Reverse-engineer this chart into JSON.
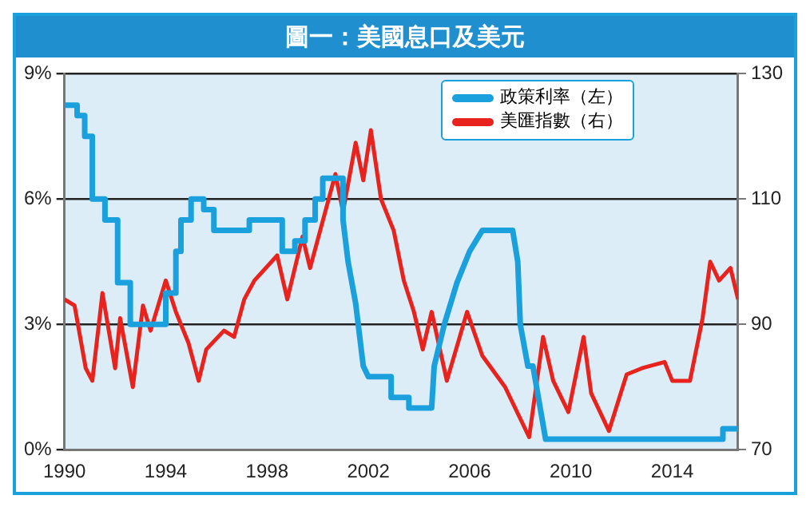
{
  "chart_data": {
    "type": "line",
    "title": "圖一：美國息口及美元",
    "xlim": [
      1990,
      2016.6
    ],
    "xticks": [
      1990,
      1994,
      1998,
      2002,
      2006,
      2010,
      2014
    ],
    "ylim": [
      0,
      9
    ],
    "yticks": [
      {
        "value": 0,
        "label": "0%"
      },
      {
        "value": 3,
        "label": "3%"
      },
      {
        "value": 6,
        "label": "6%"
      },
      {
        "value": 9,
        "label": "9%"
      }
    ],
    "y2lim": [
      70,
      130
    ],
    "y2ticks": [
      70,
      90,
      110,
      130
    ],
    "grid": "y",
    "legend": "top right",
    "series": [
      {
        "name": "政策利率（左）",
        "color": "#1aa0dc",
        "x": [
          1990,
          1990.5,
          1990.5,
          1990.8,
          1990.8,
          1991.1,
          1991.1,
          1991.6,
          1991.6,
          1992.1,
          1992.1,
          1992.6,
          1992.6,
          1994.0,
          1994.0,
          1994.4,
          1994.4,
          1994.6,
          1994.6,
          1995.0,
          1995.0,
          1995.5,
          1995.5,
          1995.9,
          1995.9,
          1997.3,
          1997.3,
          1998.6,
          1998.6,
          1999.1,
          1999.1,
          1999.5,
          1999.5,
          1999.9,
          1999.9,
          2000.2,
          2000.2,
          2001.0,
          2001.0,
          2001.2,
          2001.5,
          2001.8,
          2002.0,
          2002.9,
          2002.9,
          2003.6,
          2003.6,
          2004.5,
          2004.6,
          2005.0,
          2005.5,
          2006.0,
          2006.5,
          2007.7,
          2007.9,
          2008.0,
          2008.3,
          2008.5,
          2009.0,
          2016.0,
          2016.0,
          2016.6
        ],
        "values": [
          8.25,
          8.25,
          8.0,
          8.0,
          7.5,
          7.5,
          6.0,
          6.0,
          5.5,
          5.5,
          4.0,
          4.0,
          3.0,
          3.0,
          3.75,
          3.75,
          4.75,
          4.75,
          5.5,
          5.5,
          6.0,
          6.0,
          5.75,
          5.75,
          5.25,
          5.25,
          5.5,
          5.5,
          4.75,
          4.75,
          5.0,
          5.0,
          5.5,
          5.5,
          6.0,
          6.0,
          6.5,
          6.5,
          5.5,
          4.5,
          3.5,
          2.0,
          1.75,
          1.75,
          1.25,
          1.25,
          1.0,
          1.0,
          2.0,
          3.0,
          4.0,
          4.75,
          5.25,
          5.25,
          4.5,
          3.0,
          2.0,
          2.0,
          0.25,
          0.25,
          0.5,
          0.5
        ]
      },
      {
        "name": "美匯指數（右）",
        "color": "#e8231e",
        "axis": "y2",
        "x": [
          1990,
          1990.4,
          1990.84,
          1991.1,
          1991.5,
          1992.0,
          1992.2,
          1992.7,
          1993.1,
          1993.4,
          1994.0,
          1994.4,
          1994.9,
          1995.3,
          1995.6,
          1996.3,
          1996.7,
          1997.1,
          1997.5,
          1998.4,
          1998.8,
          1999.4,
          1999.7,
          2000.7,
          2001.0,
          2001.5,
          2001.8,
          2002.1,
          2002.5,
          2003.0,
          2003.4,
          2003.8,
          2004.15,
          2004.5,
          2005.1,
          2005.9,
          2006.5,
          2007.4,
          2008.35,
          2008.9,
          2009.3,
          2009.9,
          2010.5,
          2010.8,
          2011.5,
          2012.2,
          2012.8,
          2013.7,
          2014.0,
          2014.7,
          2015.2,
          2015.5,
          2015.85,
          2016.3,
          2016.6
        ],
        "values": [
          94,
          93,
          83,
          81,
          95,
          83,
          91,
          80,
          93,
          89,
          97,
          92,
          87,
          81,
          86,
          89,
          88,
          94,
          97,
          101,
          94,
          104,
          99,
          114,
          108,
          119,
          113,
          121,
          110,
          105,
          97,
          92,
          86,
          92,
          81,
          92,
          85,
          80,
          72,
          88,
          81,
          76,
          88,
          79,
          73,
          82,
          83,
          84,
          81,
          81,
          91,
          100,
          97,
          99,
          94
        ]
      }
    ]
  }
}
